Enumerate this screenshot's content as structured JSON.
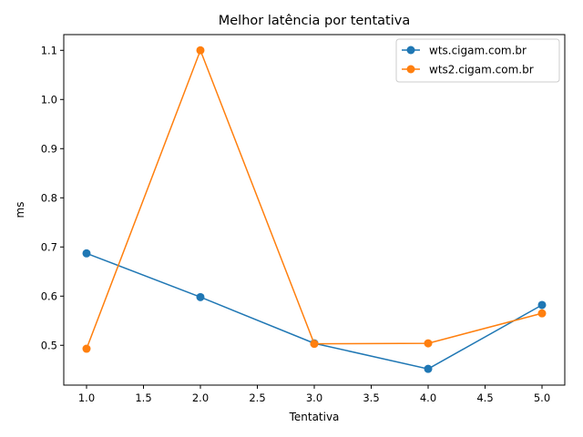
{
  "chart_data": {
    "type": "line",
    "title": "Melhor latência por tentativa",
    "xlabel": "Tentativa",
    "ylabel": "ms",
    "x": [
      1.0,
      2.0,
      3.0,
      4.0,
      5.0
    ],
    "xlim": [
      0.8,
      5.2
    ],
    "ylim": [
      0.419,
      1.132
    ],
    "xticks": [
      1.0,
      1.5,
      2.0,
      2.5,
      3.0,
      3.5,
      4.0,
      4.5,
      5.0
    ],
    "xtick_labels": [
      "1.0",
      "1.5",
      "2.0",
      "2.5",
      "3.0",
      "3.5",
      "4.0",
      "4.5",
      "5.0"
    ],
    "yticks": [
      0.5,
      0.6,
      0.7,
      0.8,
      0.9,
      1.0,
      1.1
    ],
    "ytick_labels": [
      "0.5",
      "0.6",
      "0.7",
      "0.8",
      "0.9",
      "1.0",
      "1.1"
    ],
    "grid": false,
    "legend_position": "top-right",
    "series": [
      {
        "name": "wts.cigam.com.br",
        "color": "#1f77b4",
        "values": [
          0.687,
          0.598,
          0.504,
          0.452,
          0.582
        ]
      },
      {
        "name": "wts2.cigam.com.br",
        "color": "#ff7f0e",
        "values": [
          0.493,
          1.1,
          0.503,
          0.504,
          0.565
        ]
      }
    ]
  }
}
